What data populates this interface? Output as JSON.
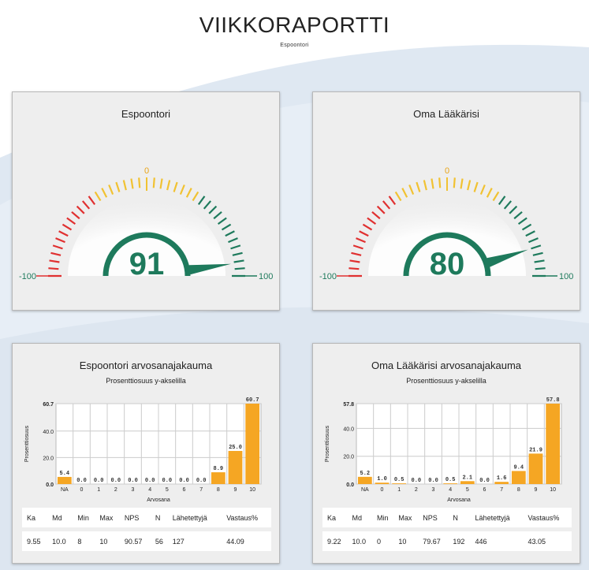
{
  "header": {
    "title": "VIIKKORAPORTTI",
    "subtitle": "Espoontori"
  },
  "colors": {
    "accent": "#1e7a5c",
    "bar": "#f5a623",
    "red": "#e03030",
    "yellow": "#f1c232",
    "green": "#1e7a5c"
  },
  "gauges": [
    {
      "title": "Espoontori",
      "value": 91,
      "value_label": "91",
      "min_label": "-100",
      "max_label": "100",
      "mid_label": "0"
    },
    {
      "title": "Oma Lääkärisi",
      "value": 80,
      "value_label": "80",
      "min_label": "-100",
      "max_label": "100",
      "mid_label": "0"
    }
  ],
  "distributions": [
    {
      "title": "Espoontori arvosanajakauma",
      "subtitle": "Prosenttiosuus y-akselilla",
      "stats_headers": [
        "Ka",
        "Md",
        "Min",
        "Max",
        "NPS",
        "N",
        "Lähetettyjä",
        "Vastaus%"
      ],
      "stats_values": [
        "9.55",
        "10.0",
        "8",
        "10",
        "90.57",
        "56",
        "127",
        "44.09"
      ],
      "chart_data": {
        "type": "bar",
        "categories": [
          "NA",
          "0",
          "1",
          "2",
          "3",
          "4",
          "5",
          "6",
          "7",
          "8",
          "9",
          "10"
        ],
        "values": [
          5.4,
          0.0,
          0.0,
          0.0,
          0.0,
          0.0,
          0.0,
          0.0,
          0.0,
          8.9,
          25.0,
          60.7
        ],
        "value_labels": [
          "5.4",
          "0.0",
          "0.0",
          "0.0",
          "0.0",
          "0.0",
          "0.0",
          "0.0",
          "0.0",
          "8.9",
          "25.0",
          "60.7"
        ],
        "xlabel": "Arvosana",
        "ylabel": "Prosenttiosuus",
        "yticks": [
          0,
          20,
          40,
          60.7
        ],
        "ytick_labels": [
          "0.0",
          "20.0",
          "40.0",
          "60.7"
        ],
        "ylim": [
          0,
          60.7
        ],
        "grid": true
      }
    },
    {
      "title": "Oma Lääkärisi arvosanajakauma",
      "subtitle": "Prosenttiosuus y-akselilla",
      "stats_headers": [
        "Ka",
        "Md",
        "Min",
        "Max",
        "NPS",
        "N",
        "Lähetettyjä",
        "Vastaus%"
      ],
      "stats_values": [
        "9.22",
        "10.0",
        "0",
        "10",
        "79.67",
        "192",
        "446",
        "43.05"
      ],
      "chart_data": {
        "type": "bar",
        "categories": [
          "NA",
          "0",
          "1",
          "2",
          "3",
          "4",
          "5",
          "6",
          "7",
          "8",
          "9",
          "10"
        ],
        "values": [
          5.2,
          1.0,
          0.5,
          0.0,
          0.0,
          0.5,
          2.1,
          0.0,
          1.6,
          9.4,
          21.9,
          57.8
        ],
        "value_labels": [
          "5.2",
          "1.0",
          "0.5",
          "0.0",
          "0.0",
          "0.5",
          "2.1",
          "0.0",
          "1.6",
          "9.4",
          "21.9",
          "57.8"
        ],
        "xlabel": "Arvosana",
        "ylabel": "Prosenttiosuus",
        "yticks": [
          0,
          20,
          40,
          57.8
        ],
        "ytick_labels": [
          "0.0",
          "20.0",
          "40.0",
          "57.8"
        ],
        "ylim": [
          0,
          57.8
        ],
        "grid": true
      }
    }
  ]
}
